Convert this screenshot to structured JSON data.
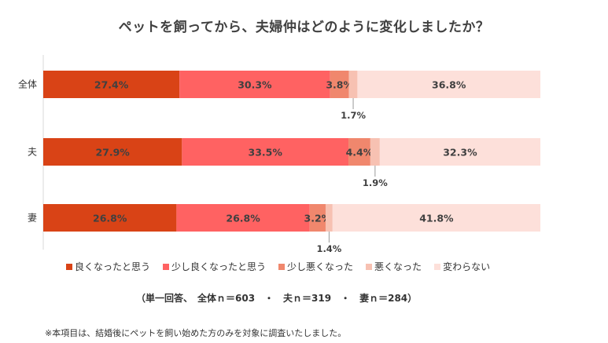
{
  "chart_data": {
    "type": "bar",
    "orientation": "horizontal",
    "stacked": "100%",
    "title": "ペットを飼ってから、夫婦仲はどのように変化しましたか？",
    "categories": [
      "全体",
      "夫",
      "妻"
    ],
    "series": [
      {
        "name": "良くなったと思う",
        "color": "#d94316",
        "values": [
          27.4,
          27.9,
          26.8
        ]
      },
      {
        "name": "少し良くなったと思う",
        "color": "#ff6262",
        "values": [
          30.3,
          33.5,
          26.8
        ]
      },
      {
        "name": "少し悪くなった",
        "color": "#f0876d",
        "values": [
          3.8,
          4.4,
          3.2
        ]
      },
      {
        "name": "悪くなった",
        "color": "#f7c1b2",
        "values": [
          1.7,
          1.9,
          1.4
        ]
      },
      {
        "name": "変わらない",
        "color": "#fde0da",
        "values": [
          36.8,
          32.3,
          41.8
        ]
      }
    ],
    "value_labels": [
      [
        "27.4%",
        "30.3%",
        "3.8%",
        "1.7%",
        "36.8%"
      ],
      [
        "27.9%",
        "33.5%",
        "4.4%",
        "1.9%",
        "32.3%"
      ],
      [
        "26.8%",
        "26.8%",
        "3.2%",
        "1.4%",
        "41.8%"
      ]
    ],
    "xlim": [
      0,
      100
    ],
    "legend_position": "bottom",
    "grid": false
  },
  "sample_note": "（単一回答、　全体ｎ＝603　・　夫ｎ＝319　・　妻ｎ＝284）",
  "footnote": "※本項目は、結婚後にペットを飼い始めた方のみを対象に調査いたしました。"
}
